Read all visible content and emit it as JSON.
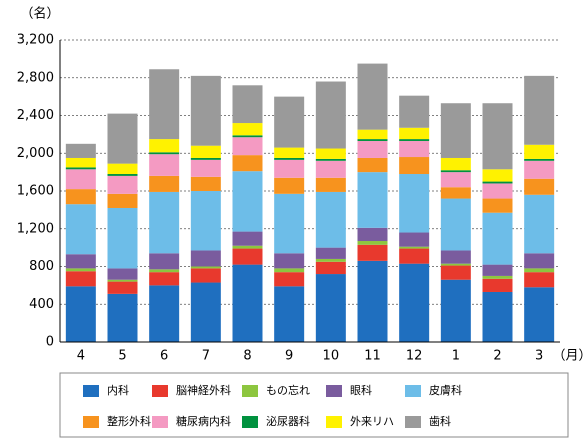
{
  "chart_data": {
    "type": "stacked_bar",
    "y_unit": "（名）",
    "x_unit": "（月）",
    "categories": [
      "4",
      "5",
      "6",
      "7",
      "8",
      "9",
      "10",
      "11",
      "12",
      "1",
      "2",
      "3"
    ],
    "ylim": [
      0,
      3200
    ],
    "yticks": [
      0,
      400,
      800,
      {
        "value": 1200,
        "label": "1,200"
      },
      {
        "value": 1600,
        "label": "1,600"
      },
      {
        "value": 2000,
        "label": "2,000"
      },
      {
        "value": 2400,
        "label": "2,400"
      },
      {
        "value": 2800,
        "label": "2,800"
      },
      {
        "value": 3200,
        "label": "3,200"
      }
    ],
    "grid": true,
    "legend": "bottom",
    "series": [
      {
        "name": "内科",
        "color": "#1f6fbf",
        "values": [
          590,
          510,
          600,
          630,
          820,
          590,
          720,
          860,
          830,
          660,
          530,
          580
        ]
      },
      {
        "name": "脳神経外科",
        "color": "#e8392d",
        "values": [
          160,
          130,
          140,
          150,
          170,
          150,
          130,
          170,
          160,
          150,
          140,
          160
        ]
      },
      {
        "name": "もの忘れ",
        "color": "#8dc63f",
        "values": [
          30,
          20,
          30,
          20,
          30,
          40,
          30,
          40,
          20,
          20,
          30,
          40
        ]
      },
      {
        "name": "眼科",
        "color": "#7a5c9e",
        "values": [
          150,
          120,
          170,
          170,
          150,
          160,
          120,
          140,
          150,
          140,
          120,
          160
        ]
      },
      {
        "name": "皮膚科",
        "color": "#6dbde8",
        "values": [
          530,
          640,
          650,
          630,
          640,
          630,
          590,
          590,
          620,
          550,
          550,
          620
        ]
      },
      {
        "name": "整形外科",
        "color": "#f7931e",
        "values": [
          160,
          150,
          170,
          150,
          170,
          170,
          150,
          150,
          180,
          120,
          150,
          170
        ]
      },
      {
        "name": "糖尿病内科",
        "color": "#f49ac2",
        "values": [
          210,
          190,
          230,
          180,
          190,
          190,
          180,
          180,
          170,
          160,
          160,
          190
        ]
      },
      {
        "name": "泌尿器科",
        "color": "#00923f",
        "values": [
          20,
          20,
          20,
          20,
          20,
          20,
          20,
          20,
          20,
          20,
          20,
          20
        ]
      },
      {
        "name": "外来リハ",
        "color": "#fff200",
        "values": [
          100,
          110,
          140,
          130,
          130,
          110,
          110,
          100,
          120,
          130,
          130,
          150
        ]
      },
      {
        "name": "歯科",
        "color": "#9a9a9a",
        "values": [
          150,
          530,
          740,
          740,
          400,
          540,
          710,
          700,
          340,
          580,
          700,
          730
        ]
      }
    ]
  }
}
